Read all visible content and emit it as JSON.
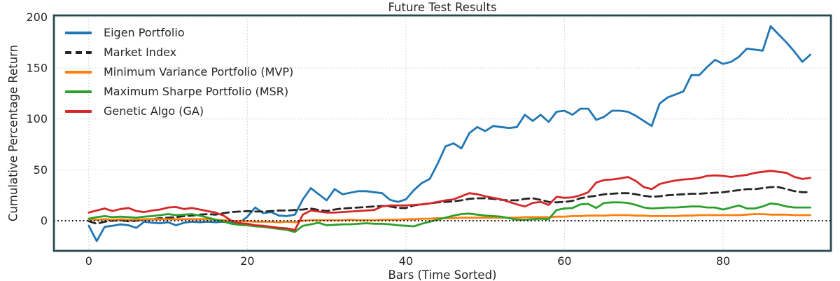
{
  "figure": {
    "background": "#ffffff"
  },
  "chart_data": {
    "type": "line",
    "title": "Future Test Results",
    "xlabel": "Bars (Time Sorted)",
    "ylabel": "Cumulative Percentage Return",
    "x_ticks": [
      0,
      20,
      40,
      60,
      80
    ],
    "y_ticks": [
      0,
      50,
      100,
      150,
      200
    ],
    "xlim": [
      -4.4,
      93.6
    ],
    "ylim": [
      -29.6,
      201.6
    ],
    "grid": "dotted",
    "zero_line": true,
    "legend_position": "upper-left",
    "colors": {
      "spine": "#27494f",
      "grid": "#c9c9c9",
      "zero_line": "#111111",
      "text": "#262626"
    },
    "x": [
      0,
      1,
      2,
      3,
      4,
      5,
      6,
      7,
      8,
      9,
      10,
      11,
      12,
      13,
      14,
      15,
      16,
      17,
      18,
      19,
      20,
      21,
      22,
      23,
      24,
      25,
      26,
      27,
      28,
      29,
      30,
      31,
      32,
      33,
      34,
      35,
      36,
      37,
      38,
      39,
      40,
      41,
      42,
      43,
      44,
      45,
      46,
      47,
      48,
      49,
      50,
      51,
      52,
      53,
      54,
      55,
      56,
      57,
      58,
      59,
      60,
      61,
      62,
      63,
      64,
      65,
      66,
      67,
      68,
      69,
      70,
      71,
      72,
      73,
      74,
      75,
      76,
      77,
      78,
      79,
      80,
      81,
      82,
      83,
      84,
      85,
      86,
      87,
      88,
      89,
      90,
      91
    ],
    "series": [
      {
        "name": "Eigen Portfolio",
        "color": "#1f77b4",
        "style": "solid",
        "values": [
          -5,
          -20,
          -6,
          -5,
          -3.5,
          -4.5,
          -7,
          -1,
          -2,
          -2.5,
          -1.5,
          -4.5,
          -2,
          -1,
          -1.5,
          -1,
          -1.5,
          -1,
          -2,
          -2,
          4,
          13,
          7.5,
          8.5,
          5,
          4.5,
          6,
          21,
          32,
          26,
          20,
          31,
          26,
          27.5,
          29,
          29,
          28,
          27,
          20.5,
          18.5,
          21,
          30,
          37,
          41,
          56,
          73,
          76,
          71,
          86,
          92,
          88,
          93,
          92,
          91,
          92,
          104,
          98,
          104,
          97,
          107,
          108,
          104,
          110,
          110,
          99,
          102,
          108,
          108,
          107,
          103,
          98,
          93,
          115,
          121,
          124,
          127,
          143,
          143,
          151,
          158,
          154,
          156,
          161,
          169,
          168,
          167,
          191,
          183,
          175,
          166,
          156,
          163
        ]
      },
      {
        "name": "Market Index",
        "color": "#262626",
        "style": "dashed",
        "values": [
          -0.5,
          -3,
          -1,
          0,
          0.5,
          -0.5,
          0,
          1,
          1.5,
          2.5,
          3,
          3.5,
          4.5,
          5,
          6,
          6.5,
          6,
          7.5,
          8.5,
          9,
          9.5,
          9,
          9,
          9.5,
          10,
          10,
          10.5,
          11,
          12,
          10.5,
          9.5,
          11,
          12,
          12.5,
          13,
          13.5,
          14,
          14.5,
          14,
          12.5,
          12.5,
          15,
          16,
          17,
          18,
          18.5,
          19,
          20,
          21.5,
          22,
          22,
          21.5,
          20.5,
          20,
          20,
          21.5,
          22,
          20.5,
          18.5,
          18,
          18.5,
          19.5,
          22,
          23.5,
          24.5,
          26,
          26.5,
          27,
          27,
          26,
          24.5,
          23.5,
          24,
          25,
          25.5,
          26,
          26.5,
          26.5,
          27,
          27.5,
          28,
          29,
          30,
          31,
          31,
          32,
          33,
          33,
          31,
          29,
          28,
          28
        ]
      },
      {
        "name": "Minimum Variance Portfolio (MVP)",
        "color": "#ff7f0e",
        "style": "solid",
        "values": [
          1.5,
          1,
          1.5,
          1,
          1.5,
          1,
          1,
          1.5,
          1.5,
          1.5,
          1.5,
          1.5,
          1.5,
          1.5,
          1.5,
          1.5,
          1,
          0.5,
          0,
          -0.5,
          -0.5,
          -1,
          -1,
          -1,
          -1.5,
          -1,
          -1.5,
          0,
          0.5,
          0.5,
          0.5,
          0.5,
          0.5,
          1,
          0.5,
          0.5,
          0.5,
          1,
          1,
          1,
          1.5,
          1.5,
          2,
          2,
          2.5,
          2.5,
          2.5,
          3,
          3,
          3,
          3,
          3,
          3,
          3,
          3,
          3.5,
          3.5,
          3.5,
          3.5,
          4,
          4,
          4.5,
          4.5,
          5,
          5,
          5,
          5.5,
          5.5,
          5.5,
          5,
          5,
          4.5,
          4.5,
          4.5,
          4.5,
          5,
          5,
          5.5,
          5.5,
          5.5,
          5.5,
          5.5,
          5.5,
          6,
          6.5,
          6.5,
          6,
          6,
          6,
          5.5,
          5.5,
          5.5
        ]
      },
      {
        "name": "Maximum Sharpe Portfolio (MSR)",
        "color": "#2ca02c",
        "style": "solid",
        "values": [
          2,
          3.5,
          4.5,
          3.5,
          4,
          3.5,
          3,
          4,
          4.5,
          5.5,
          6.5,
          5.5,
          6,
          6.5,
          5,
          3,
          1,
          -1,
          -3,
          -4,
          -4.5,
          -5.5,
          -6,
          -7,
          -8,
          -9,
          -11,
          -5,
          -3.5,
          -2,
          -4.5,
          -4,
          -3.5,
          -3.5,
          -3,
          -2.5,
          -3,
          -3,
          -3.5,
          -4.5,
          -5,
          -5.5,
          -3,
          -1,
          1,
          3,
          5,
          6.5,
          7,
          6,
          5,
          4.5,
          4,
          2.5,
          1,
          1,
          1.5,
          2,
          1.5,
          10.5,
          12,
          12.5,
          16,
          16.5,
          12.5,
          17.5,
          18,
          18,
          17.5,
          15.5,
          13,
          12,
          12.5,
          13,
          13,
          13.5,
          14,
          14,
          13,
          13,
          11,
          13,
          15,
          12,
          12,
          14,
          17,
          16,
          14,
          13,
          13,
          13
        ]
      },
      {
        "name": "Genetic Algo (GA)",
        "color": "#d62728",
        "style": "solid",
        "values": [
          8,
          10,
          12,
          9.5,
          11.5,
          12.5,
          9.5,
          8.5,
          10,
          11,
          13,
          13.5,
          11.5,
          12.5,
          11,
          9.5,
          8,
          5,
          0,
          -2.5,
          -3,
          -4.5,
          -5,
          -6,
          -7,
          -7.5,
          -9,
          6,
          10,
          9,
          8,
          8,
          8.5,
          9,
          9.5,
          10,
          10.5,
          14,
          15,
          15,
          15,
          15.5,
          16,
          17,
          18.5,
          20,
          21,
          24,
          27,
          26,
          24,
          22.5,
          21,
          18.5,
          16,
          14,
          17.5,
          18.5,
          15.5,
          23.5,
          22.5,
          23,
          25,
          28,
          37.5,
          40,
          40.5,
          41.5,
          43,
          39,
          33,
          31,
          36,
          38,
          39.5,
          40.5,
          41,
          42,
          44,
          44.5,
          44,
          43,
          44,
          45,
          47,
          48,
          49,
          48,
          47,
          43,
          41,
          42
        ]
      }
    ]
  }
}
